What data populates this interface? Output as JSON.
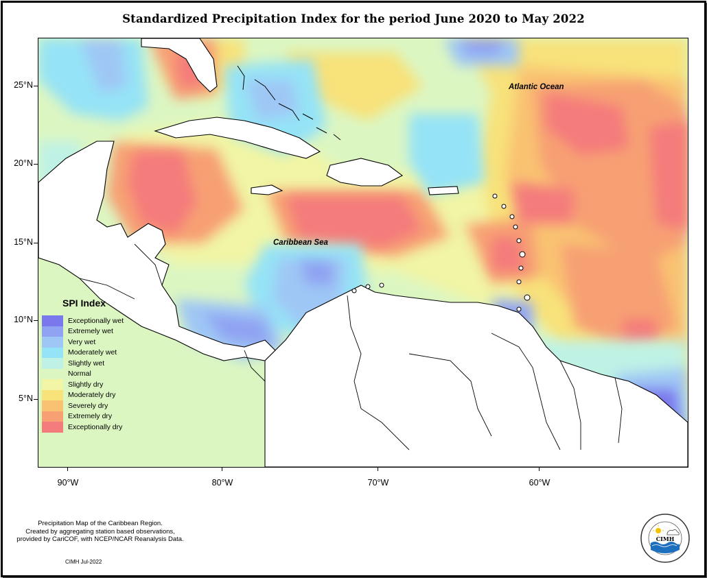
{
  "title": "Standardized Precipitation Index for the period June 2020 to May 2022",
  "map": {
    "ocean_labels": {
      "atlantic": "Atlantic Ocean",
      "caribbean": "Caribbean Sea"
    },
    "lat_labels": [
      "25°N",
      "20°N",
      "15°N",
      "10°N",
      "5°N"
    ],
    "lon_labels": [
      "90°W",
      "80°W",
      "70°W",
      "60°W"
    ]
  },
  "legend": {
    "title": "SPI Index",
    "items": [
      {
        "label": "Exceptionally wet",
        "color": "#7b78ee"
      },
      {
        "label": "Extremely wet",
        "color": "#8fa3f2"
      },
      {
        "label": "Very wet",
        "color": "#9fc7f5"
      },
      {
        "label": "Moderately wet",
        "color": "#95e3f6"
      },
      {
        "label": "Slightly wet",
        "color": "#bff2e5"
      },
      {
        "label": "Normal",
        "color": "#dcf6c2"
      },
      {
        "label": "Slightly dry",
        "color": "#f1f5a5"
      },
      {
        "label": "Moderately dry",
        "color": "#f8e27a"
      },
      {
        "label": "Severely dry",
        "color": "#f9c272"
      },
      {
        "label": "Extremely dry",
        "color": "#f7a073"
      },
      {
        "label": "Exceptionally dry",
        "color": "#f47c7c"
      }
    ]
  },
  "caption": {
    "line1": "Precipitation Map of the Caribbean Region.",
    "line2": "Created by aggregating station based observations,",
    "line3": "provided by CariCOF, with NCEP/NCAR Reanalysis Data.",
    "credit": "CIMH Jul-2022"
  },
  "logo": {
    "text": "CIMH"
  }
}
